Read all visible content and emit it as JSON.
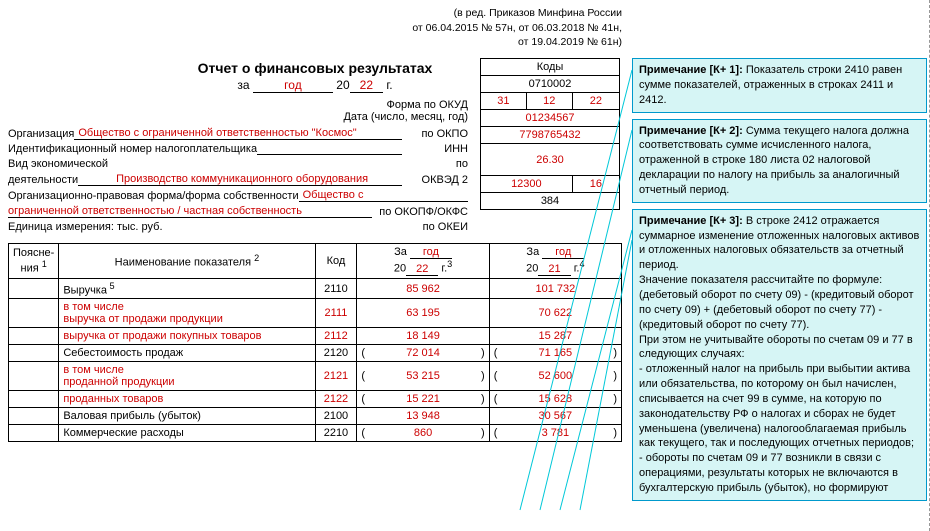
{
  "header_reg": {
    "line1": "(в ред. Приказов Минфина России",
    "line2": "от 06.04.2015 № 57н, от 06.03.2018 № 41н,",
    "line3": "от 19.04.2019 № 61н)"
  },
  "title": "Отчет о финансовых результатах",
  "period": {
    "label_za": "за",
    "period_word": "год",
    "label_20": "20",
    "year2": "22",
    "label_g": "г."
  },
  "codes": {
    "header": "Коды",
    "okud_label": "Форма по ОКУД",
    "okud": "0710002",
    "date_label": "Дата (число, месяц, год)",
    "d": "31",
    "m": "12",
    "y": "22"
  },
  "org": {
    "label": "Организация",
    "value": "Общество с ограниченной ответственностью \"Космос\"",
    "right": "по ОКПО",
    "code": "01234567"
  },
  "inn": {
    "label": "Идентификационный номер налогоплательщика",
    "right": "ИНН",
    "code": "7798765432"
  },
  "act": {
    "label1": "Вид экономической",
    "label2": "деятельности",
    "value": "Производство коммуникационного оборудования",
    "right_po": "по",
    "right": "ОКВЭД 2",
    "code": "26.30"
  },
  "form": {
    "label": "Организационно-правовая форма/форма собственности",
    "value1": "Общество с",
    "value2": "ограниченной ответственностью / частная собственность",
    "right": "по ОКОПФ/ОКФС",
    "code1": "12300",
    "code2": "16"
  },
  "unit": {
    "label": "Единица измерения: тыс. руб.",
    "right": "по ОКЕИ",
    "code": "384"
  },
  "table": {
    "hdr_poj1": "Поясне-",
    "hdr_poj2": "ния",
    "sup1": "1",
    "hdr_name": "Наименование показателя",
    "sup2": "2",
    "hdr_kod": "Код",
    "hdr_za": "За",
    "hdr_year_cur": "год",
    "hdr_20": "20",
    "hdr_y_cur": "22",
    "hdr_g": "г.",
    "sup3": "3",
    "hdr_y_prev": "21",
    "sup4": "4",
    "rows": [
      {
        "name": "Выручка",
        "sup": "5",
        "kod": "2110",
        "cur": "85 962",
        "prev": "101 732",
        "red": false,
        "paren": false
      },
      {
        "name": "в том числе",
        "name2": "выручка от продажи продукции",
        "kod": "2111",
        "cur": "63 195",
        "prev": "70 622",
        "red": true,
        "kodred": true,
        "paren": false
      },
      {
        "name": "выручка от продажи покупных товаров",
        "kod": "2112",
        "cur": "18 149",
        "prev": "15 287",
        "red": true,
        "kodred": true,
        "paren": false
      },
      {
        "name": "Себестоимость продаж",
        "kod": "2120",
        "cur": "72 014",
        "prev": "71 165",
        "red": false,
        "paren": true
      },
      {
        "name": "в том числе",
        "name2": "проданной продукции",
        "kod": "2121",
        "cur": "53 215",
        "prev": "52 600",
        "red": true,
        "kodred": true,
        "paren": true
      },
      {
        "name": "проданных товаров",
        "kod": "2122",
        "cur": "15 221",
        "prev": "15 628",
        "red": true,
        "kodred": true,
        "paren": true
      },
      {
        "name": "Валовая прибыль (убыток)",
        "kod": "2100",
        "cur": "13 948",
        "prev": "30 567",
        "red": false,
        "paren": false
      },
      {
        "name": "Коммерческие расходы",
        "kod": "2210",
        "cur": "860",
        "prev": "3 781",
        "red": false,
        "paren": true
      }
    ]
  },
  "notes": {
    "n1": {
      "title": "Примечание [К+ 1]:",
      "text": " Показатель строки 2410 равен сумме показателей, отраженных в строках 2411 и 2412."
    },
    "n2": {
      "title": "Примечание [К+ 2]:",
      "text": " Сумма текущего налога должна соответствовать сумме исчисленного налога, отраженной в строке 180 листа 02 налоговой декларации по налогу на прибыль за аналогичный отчетный период."
    },
    "n3": {
      "title": "Примечание [К+ 3]:",
      "text1": " В строке 2412 отражается суммарное изменение отложенных налоговых активов и отложенных налоговых обязательств за отчетный период.",
      "text2": "Значение показателя рассчитайте по формуле: (дебетовый оборот по счету 09) - (кредитовый оборот по счету 09) + (дебетовый оборот по счету 77) - (кредитовый оборот по счету 77).",
      "text3": "При этом не учитывайте обороты по счетам 09 и 77 в следующих случаях:",
      "text4": "- отложенный налог на прибыль при выбытии актива или обязательства, по которому он был начислен, списывается на счет 99 в сумме, на которую по законодательству РФ о налогах и сборах не будет уменьшена (увеличена) налогооблагаемая прибыль как текущего, так и последующих отчетных периодов;",
      "text5": "- обороты по счетам 09 и 77 возникли в связи с операциями, результаты которых не включаются в бухгалтерскую прибыль (убыток), но формируют"
    }
  }
}
